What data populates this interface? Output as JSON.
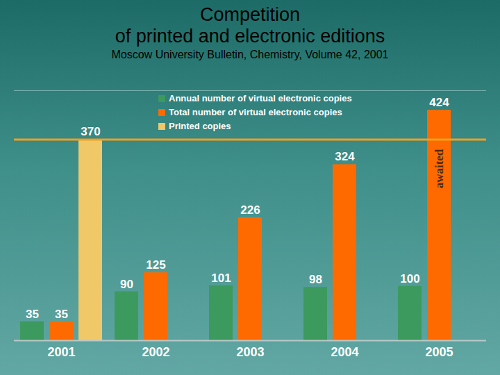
{
  "chart_data": {
    "type": "bar",
    "title": "Competition\nof printed and electronic editions",
    "subtitle": "Moscow University Bulletin, Chemistry,  Volume 42,  2001",
    "categories": [
      "2001",
      "2002",
      "2003",
      "2004",
      "2005"
    ],
    "series": [
      {
        "name": "Annual number of virtual electronic copies",
        "color": "#3c9a5f",
        "values": [
          35,
          90,
          101,
          98,
          100
        ]
      },
      {
        "name": "Total number of virtual electronic copies",
        "color": "#ff6a00",
        "values": [
          35,
          125,
          226,
          324,
          424
        ]
      },
      {
        "name": "Printed copies",
        "color": "#f0c868",
        "values": [
          370,
          null,
          null,
          null,
          null
        ]
      }
    ],
    "ylim": [
      0,
      460
    ],
    "tick_labels": "x",
    "data_labels": true,
    "legend": "top",
    "reference_line": {
      "value": 370,
      "color": "#f0a020"
    },
    "annotations": [
      {
        "text": "awaited",
        "category": "2005",
        "series": "Total number of virtual electronic copies"
      }
    ]
  }
}
